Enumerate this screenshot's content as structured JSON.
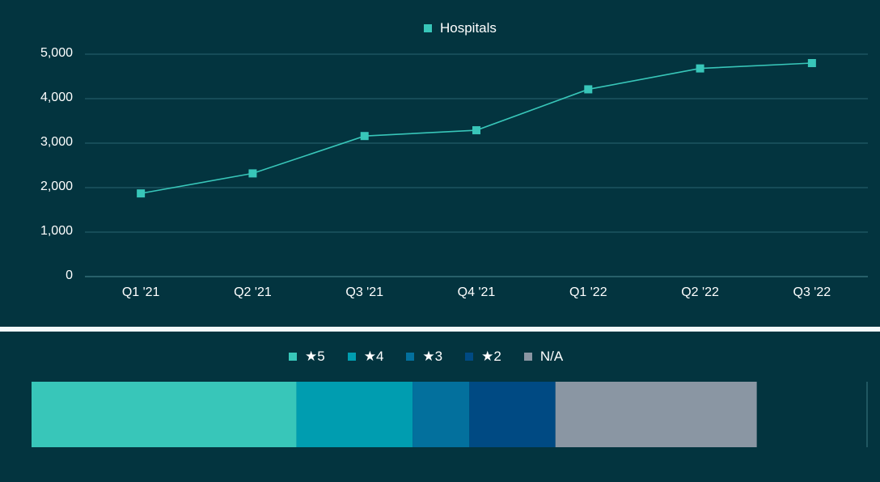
{
  "chart_data": [
    {
      "type": "line",
      "title": "",
      "xlabel": "",
      "ylabel": "",
      "legend": {
        "position": "top",
        "entries": [
          "Hospitals"
        ]
      },
      "grid": true,
      "ylim": [
        0,
        5000
      ],
      "yticks": [
        "0",
        "1,000",
        "2,000",
        "3,000",
        "4,000",
        "5,000"
      ],
      "ytick_values": [
        0,
        1000,
        2000,
        3000,
        4000,
        5000
      ],
      "categories": [
        "Q1 '21",
        "Q2 '21",
        "Q3 '21",
        "Q4 '21",
        "Q1 '22",
        "Q2 '22",
        "Q3 '22"
      ],
      "series": [
        {
          "name": "Hospitals",
          "color": "#38c6b9",
          "values": [
            1870,
            2320,
            3160,
            3290,
            4210,
            4680,
            4800
          ]
        }
      ]
    },
    {
      "type": "bar",
      "orientation": "horizontal-stacked",
      "title": "",
      "legend": {
        "position": "top",
        "entries": [
          "★5",
          "★4",
          "★3",
          "★2",
          "N/A"
        ]
      },
      "categories": [
        ""
      ],
      "series": [
        {
          "name": "★5",
          "color": "#38c6b9",
          "values": [
            31.7
          ]
        },
        {
          "name": "★4",
          "color": "#009db0",
          "values": [
            13.9
          ]
        },
        {
          "name": "★3",
          "color": "#03709d",
          "values": [
            6.8
          ]
        },
        {
          "name": "★2",
          "color": "#004a83",
          "values": [
            10.3
          ]
        },
        {
          "name": "N/A",
          "color": "#8a96a3",
          "values": [
            24.1
          ]
        }
      ],
      "xlim": [
        0,
        100
      ],
      "unit": "approx. percent of bar width"
    }
  ],
  "colors": {
    "background": "#03343f",
    "gridline": "#1d5560",
    "axis": "#3d7a83",
    "separator": "#f2f9fc",
    "text": "#ffffff"
  }
}
